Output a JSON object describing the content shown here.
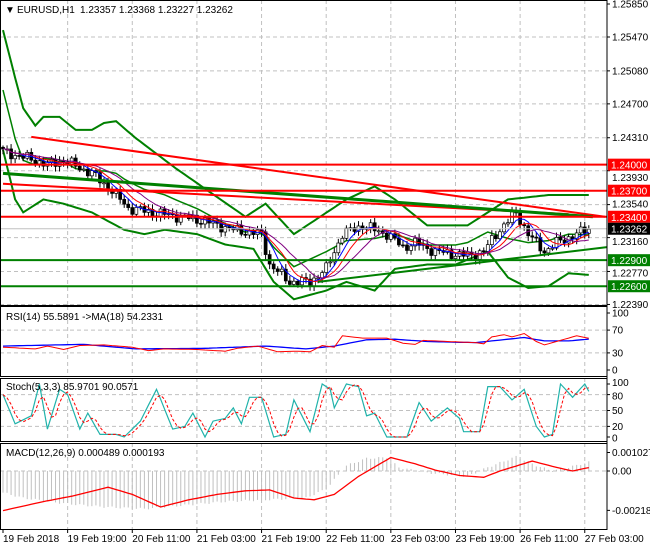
{
  "header": {
    "symbol_label": "EURUSD,H1",
    "ohlc": "1.23357 1.23368 1.23227 1.23262",
    "rsi_label": "RSI(14) 55.5891  ->MA(18) 54.2331",
    "stoch_label": "Stoch(5,3,3) 85.9701 90.0571",
    "macd_label": "MACD(12,26,9) 0.000489 0.000193"
  },
  "colors": {
    "up_line": "#ff0000",
    "support": "#008000",
    "bands": "#008000",
    "rsi": "#ff0000",
    "rsi_ma": "#0000ff",
    "stoch_main": "#20b2aa",
    "stoch_signal": "#ff0000",
    "macd_hist": "#c0c0c0",
    "macd_signal": "#ff0000"
  },
  "chart_data": {
    "type": "candlestick",
    "bars": 146,
    "price_axis": [
      "1.25850",
      "1.25470",
      "1.25080",
      "1.24700",
      "1.24310",
      "1.23930",
      "1.23540",
      "1.23160",
      "1.22770",
      "1.22390"
    ],
    "time_axis": [
      "19 Feb 2018",
      "19 Feb 19:00",
      "20 Feb 11:00",
      "21 Feb 03:00",
      "21 Feb 19:00",
      "22 Feb 11:00",
      "23 Feb 03:00",
      "23 Feb 19:00",
      "26 Feb 11:00",
      "27 Feb 03:00"
    ],
    "current_price": "1.23262",
    "levels": [
      {
        "price": "1.24000",
        "kind": "resistance"
      },
      {
        "price": "1.23700",
        "kind": "resistance"
      },
      {
        "price": "1.23400",
        "kind": "resistance"
      },
      {
        "price": "1.22900",
        "kind": "support"
      },
      {
        "price": "1.22600",
        "kind": "support"
      }
    ],
    "trendlines": [
      {
        "kind": "resistance",
        "from": [
          7,
          1.2432
        ],
        "to": [
          149,
          1.234
        ]
      },
      {
        "kind": "resistance",
        "from": [
          0,
          1.2378
        ],
        "to": [
          140,
          1.2343
        ]
      },
      {
        "kind": "trend",
        "from": [
          0,
          1.239
        ],
        "to": [
          146,
          1.234
        ]
      },
      {
        "kind": "support",
        "from": [
          78,
          1.2265
        ],
        "to": [
          150,
          1.2305
        ]
      }
    ],
    "close": [
      [
        0,
        1.2415
      ],
      [
        8,
        1.2405
      ],
      [
        11,
        1.24
      ],
      [
        15,
        1.2405
      ],
      [
        22,
        1.239
      ],
      [
        27,
        1.237
      ],
      [
        31,
        1.235
      ],
      [
        37,
        1.2345
      ],
      [
        44,
        1.234
      ],
      [
        50,
        1.2335
      ],
      [
        57,
        1.2325
      ],
      [
        64,
        1.232
      ],
      [
        66,
        1.2285
      ],
      [
        71,
        1.2265
      ],
      [
        76,
        1.2265
      ],
      [
        80,
        1.228
      ],
      [
        84,
        1.232
      ],
      [
        89,
        1.233
      ],
      [
        95,
        1.232
      ],
      [
        99,
        1.2305
      ],
      [
        102,
        1.231
      ],
      [
        107,
        1.23
      ],
      [
        115,
        1.2295
      ],
      [
        119,
        1.23
      ],
      [
        122,
        1.232
      ],
      [
        127,
        1.2345
      ],
      [
        130,
        1.232
      ],
      [
        134,
        1.23
      ],
      [
        137,
        1.231
      ],
      [
        142,
        1.232
      ],
      [
        145,
        1.2326
      ]
    ],
    "bb_upper": [
      [
        0,
        1.2555
      ],
      [
        3,
        1.25
      ],
      [
        5,
        1.2465
      ],
      [
        8,
        1.2445
      ],
      [
        10,
        1.2455
      ],
      [
        14,
        1.2455
      ],
      [
        18,
        1.244
      ],
      [
        22,
        1.244
      ],
      [
        25,
        1.2448
      ],
      [
        28,
        1.245
      ],
      [
        33,
        1.243
      ],
      [
        43,
        1.2395
      ],
      [
        60,
        1.234
      ],
      [
        65,
        1.2355
      ],
      [
        72,
        1.232
      ],
      [
        85,
        1.236
      ],
      [
        92,
        1.2375
      ],
      [
        97,
        1.236
      ],
      [
        105,
        1.233
      ],
      [
        115,
        1.233
      ],
      [
        125,
        1.236
      ],
      [
        135,
        1.2365
      ],
      [
        145,
        1.2365
      ]
    ],
    "bb_lower": [
      [
        0,
        1.2417
      ],
      [
        3,
        1.236
      ],
      [
        5,
        1.2345
      ],
      [
        10,
        1.236
      ],
      [
        15,
        1.2355
      ],
      [
        22,
        1.2345
      ],
      [
        30,
        1.2325
      ],
      [
        35,
        1.232
      ],
      [
        40,
        1.2325
      ],
      [
        48,
        1.232
      ],
      [
        55,
        1.2308
      ],
      [
        62,
        1.2303
      ],
      [
        67,
        1.2265
      ],
      [
        72,
        1.2245
      ],
      [
        80,
        1.2255
      ],
      [
        85,
        1.2265
      ],
      [
        92,
        1.2255
      ],
      [
        97,
        1.228
      ],
      [
        105,
        1.2285
      ],
      [
        112,
        1.2285
      ],
      [
        120,
        1.23
      ],
      [
        125,
        1.227
      ],
      [
        130,
        1.2258
      ],
      [
        135,
        1.226
      ],
      [
        140,
        1.2275
      ],
      [
        145,
        1.2273
      ]
    ],
    "rsi": {
      "axis": [
        "100",
        "70",
        "30",
        "0"
      ],
      "values": [
        [
          0,
          40
        ],
        [
          8,
          37
        ],
        [
          11,
          42
        ],
        [
          15,
          36
        ],
        [
          19,
          43
        ],
        [
          25,
          44
        ],
        [
          32,
          40
        ],
        [
          36,
          34
        ],
        [
          40,
          37
        ],
        [
          48,
          36
        ],
        [
          55,
          33
        ],
        [
          58,
          38
        ],
        [
          63,
          42
        ],
        [
          68,
          32
        ],
        [
          73,
          33
        ],
        [
          76,
          32
        ],
        [
          79,
          43
        ],
        [
          82,
          40
        ],
        [
          84,
          60
        ],
        [
          89,
          56
        ],
        [
          95,
          56
        ],
        [
          99,
          47
        ],
        [
          102,
          45
        ],
        [
          104,
          52
        ],
        [
          110,
          50
        ],
        [
          117,
          48
        ],
        [
          119,
          46
        ],
        [
          121,
          58
        ],
        [
          124,
          62
        ],
        [
          126,
          58
        ],
        [
          129,
          64
        ],
        [
          132,
          50
        ],
        [
          134,
          44
        ],
        [
          137,
          50
        ],
        [
          142,
          60
        ],
        [
          145,
          55.59
        ]
      ],
      "ma": [
        [
          0,
          42
        ],
        [
          20,
          45
        ],
        [
          33,
          37
        ],
        [
          50,
          38
        ],
        [
          65,
          42
        ],
        [
          75,
          37
        ],
        [
          82,
          42
        ],
        [
          90,
          53
        ],
        [
          97,
          54
        ],
        [
          105,
          50
        ],
        [
          117,
          48
        ],
        [
          125,
          54
        ],
        [
          129,
          57
        ],
        [
          134,
          51
        ],
        [
          140,
          51
        ],
        [
          145,
          54.23
        ]
      ]
    },
    "stoch": {
      "axis": [
        "100",
        "80",
        "50",
        "20",
        "0"
      ],
      "values": [
        [
          0,
          80
        ],
        [
          3,
          25
        ],
        [
          7,
          40
        ],
        [
          9,
          100
        ],
        [
          11,
          15
        ],
        [
          14,
          90
        ],
        [
          16,
          80
        ],
        [
          19,
          15
        ],
        [
          21,
          45
        ],
        [
          24,
          5
        ],
        [
          28,
          5
        ],
        [
          30,
          0
        ],
        [
          34,
          30
        ],
        [
          38,
          90
        ],
        [
          42,
          15
        ],
        [
          45,
          20
        ],
        [
          47,
          45
        ],
        [
          50,
          0
        ],
        [
          52,
          30
        ],
        [
          55,
          35
        ],
        [
          57,
          55
        ],
        [
          59,
          25
        ],
        [
          61,
          75
        ],
        [
          64,
          75
        ],
        [
          67,
          0
        ],
        [
          70,
          5
        ],
        [
          72,
          70
        ],
        [
          76,
          10
        ],
        [
          79,
          100
        ],
        [
          81,
          90
        ],
        [
          82,
          55
        ],
        [
          85,
          100
        ],
        [
          88,
          95
        ],
        [
          90,
          40
        ],
        [
          92,
          45
        ],
        [
          95,
          0
        ],
        [
          100,
          0
        ],
        [
          103,
          65
        ],
        [
          106,
          30
        ],
        [
          110,
          55
        ],
        [
          113,
          35
        ],
        [
          114,
          10
        ],
        [
          118,
          10
        ],
        [
          120,
          95
        ],
        [
          123,
          95
        ],
        [
          126,
          70
        ],
        [
          129,
          90
        ],
        [
          132,
          20
        ],
        [
          134,
          0
        ],
        [
          136,
          5
        ],
        [
          138,
          100
        ],
        [
          141,
          75
        ],
        [
          144,
          100
        ],
        [
          145,
          86
        ]
      ]
    },
    "macd": {
      "axis": [
        "0.001027",
        "0.00",
        "-0.002187"
      ],
      "unit": 0.001,
      "hist": [
        [
          0,
          -1.2
        ],
        [
          5,
          -1.5
        ],
        [
          15,
          -1.8
        ],
        [
          25,
          -2.0
        ],
        [
          35,
          -2.1
        ],
        [
          45,
          -1.9
        ],
        [
          55,
          -1.7
        ],
        [
          65,
          -1.6
        ],
        [
          75,
          -1.5
        ],
        [
          80,
          -1.0
        ],
        [
          85,
          0.3
        ],
        [
          90,
          0.7
        ],
        [
          95,
          0.75
        ],
        [
          98,
          0.2
        ],
        [
          105,
          -0.1
        ],
        [
          115,
          -0.3
        ],
        [
          120,
          0.2
        ],
        [
          127,
          0.8
        ],
        [
          132,
          0.3
        ],
        [
          136,
          0
        ],
        [
          140,
          0.2
        ],
        [
          145,
          0.49
        ]
      ],
      "signal": [
        [
          0,
          -2.2
        ],
        [
          10,
          -1.7
        ],
        [
          17,
          -1.4
        ],
        [
          26,
          -0.9
        ],
        [
          32,
          -1.3
        ],
        [
          39,
          -2.0
        ],
        [
          46,
          -1.6
        ],
        [
          53,
          -1.3
        ],
        [
          60,
          -1.1
        ],
        [
          66,
          -1.05
        ],
        [
          72,
          -1.5
        ],
        [
          77,
          -1.6
        ],
        [
          82,
          -1.3
        ],
        [
          88,
          -0.3
        ],
        [
          96,
          0.75
        ],
        [
          102,
          0.4
        ],
        [
          107,
          0.05
        ],
        [
          113,
          -0.25
        ],
        [
          119,
          -0.35
        ],
        [
          123,
          0.0
        ],
        [
          131,
          0.55
        ],
        [
          137,
          0.2
        ],
        [
          141,
          0.0
        ],
        [
          145,
          0.19
        ]
      ]
    }
  }
}
